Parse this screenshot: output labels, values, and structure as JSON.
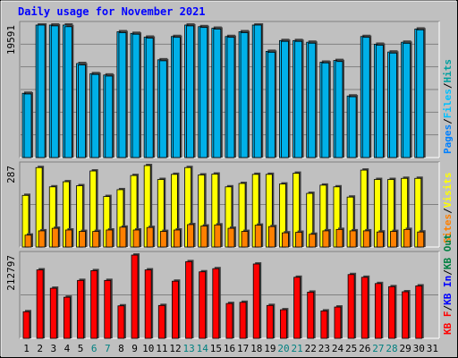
{
  "title": "Daily usage for November 2021",
  "colors": {
    "background": "#c0c0c0",
    "plot_background": "#b8b8b8",
    "gridline": "#808080",
    "pages": "#0080ff",
    "files": "#00c0ff",
    "hits": "#00a0a0",
    "visits": "#ffff00",
    "sites": "#ff8000",
    "kb_in": "#ff0000",
    "kb_out": "#008040",
    "title": "#0000ff",
    "weekend_label": "#008080"
  },
  "chart_data": [
    {
      "type": "bar",
      "panel": "hits-files-pages",
      "title": "Daily usage for November 2021",
      "ymax_label": "19591",
      "ylim": [
        0,
        19591
      ],
      "categories": [
        "1",
        "2",
        "3",
        "4",
        "5",
        "6",
        "7",
        "8",
        "9",
        "10",
        "11",
        "12",
        "13",
        "14",
        "15",
        "16",
        "17",
        "18",
        "19",
        "20",
        "21",
        "22",
        "23",
        "24",
        "25",
        "26",
        "27",
        "28",
        "29",
        "30",
        "31"
      ],
      "weekend_days": [
        "6",
        "7",
        "13",
        "14",
        "20",
        "21",
        "27",
        "28"
      ],
      "legend": [
        "Pages",
        "/",
        "Files",
        "/",
        "Hits"
      ],
      "series": [
        {
          "name": "Files",
          "values": [
            9400,
            19591,
            19472,
            19354,
            13700,
            12290,
            12050,
            18470,
            18240,
            17660,
            14310,
            17780,
            19472,
            19235,
            19000,
            17780,
            18470,
            19591,
            15570,
            17180,
            17180,
            16910,
            14000,
            14200,
            8990,
            17780,
            16620,
            15450,
            16900,
            18890,
            null
          ]
        },
        {
          "name": "Hits",
          "values": [
            9500,
            19591,
            19591,
            19591,
            13900,
            12400,
            12200,
            18600,
            18360,
            17800,
            14450,
            17900,
            19591,
            19354,
            19120,
            17900,
            18600,
            19591,
            15700,
            17300,
            17300,
            17050,
            14100,
            14350,
            9100,
            17900,
            16750,
            15600,
            17050,
            19000,
            null
          ]
        }
      ]
    },
    {
      "type": "bar",
      "panel": "visits-sites",
      "ymax_label": "287",
      "ylim": [
        0,
        287
      ],
      "categories": [
        "1",
        "2",
        "3",
        "4",
        "5",
        "6",
        "7",
        "8",
        "9",
        "10",
        "11",
        "12",
        "13",
        "14",
        "15",
        "16",
        "17",
        "18",
        "19",
        "20",
        "21",
        "22",
        "23",
        "24",
        "25",
        "26",
        "27",
        "28",
        "29",
        "30",
        "31"
      ],
      "legend": [
        "Sites",
        "/",
        "Visits"
      ],
      "series": [
        {
          "name": "Visits",
          "values": [
            182,
            280,
            212,
            230,
            216,
            268,
            178,
            202,
            252,
            287,
            238,
            256,
            280,
            254,
            257,
            212,
            224,
            256,
            256,
            222,
            260,
            189,
            218,
            212,
            176,
            271,
            238,
            238,
            242,
            242,
            null
          ]
        },
        {
          "name": "Sites",
          "values": [
            42,
            57,
            66,
            60,
            55,
            55,
            60,
            70,
            60,
            69,
            55,
            60,
            79,
            74,
            78,
            66,
            55,
            77,
            72,
            50,
            52,
            45,
            57,
            62,
            57,
            57,
            53,
            55,
            62,
            53,
            null
          ]
        }
      ]
    },
    {
      "type": "bar",
      "panel": "kbytes",
      "ymax_label": "212797",
      "ylim": [
        0,
        212797
      ],
      "categories": [
        "1",
        "2",
        "3",
        "4",
        "5",
        "6",
        "7",
        "8",
        "9",
        "10",
        "11",
        "12",
        "13",
        "14",
        "15",
        "16",
        "17",
        "18",
        "19",
        "20",
        "21",
        "22",
        "23",
        "24",
        "25",
        "26",
        "27",
        "28",
        "29",
        "30",
        "31"
      ],
      "legend": [
        "KB F",
        "/",
        "KB In",
        "/",
        "KB Out"
      ],
      "series": [
        {
          "name": "KB F",
          "values": [
            68000,
            175000,
            128000,
            105000,
            148000,
            173000,
            148000,
            83000,
            212797,
            175000,
            84000,
            146000,
            196000,
            170000,
            178000,
            89000,
            92000,
            190000,
            84000,
            73000,
            156000,
            118000,
            70000,
            80000,
            163000,
            156000,
            140000,
            132000,
            119000,
            134000,
            null
          ]
        }
      ]
    }
  ]
}
